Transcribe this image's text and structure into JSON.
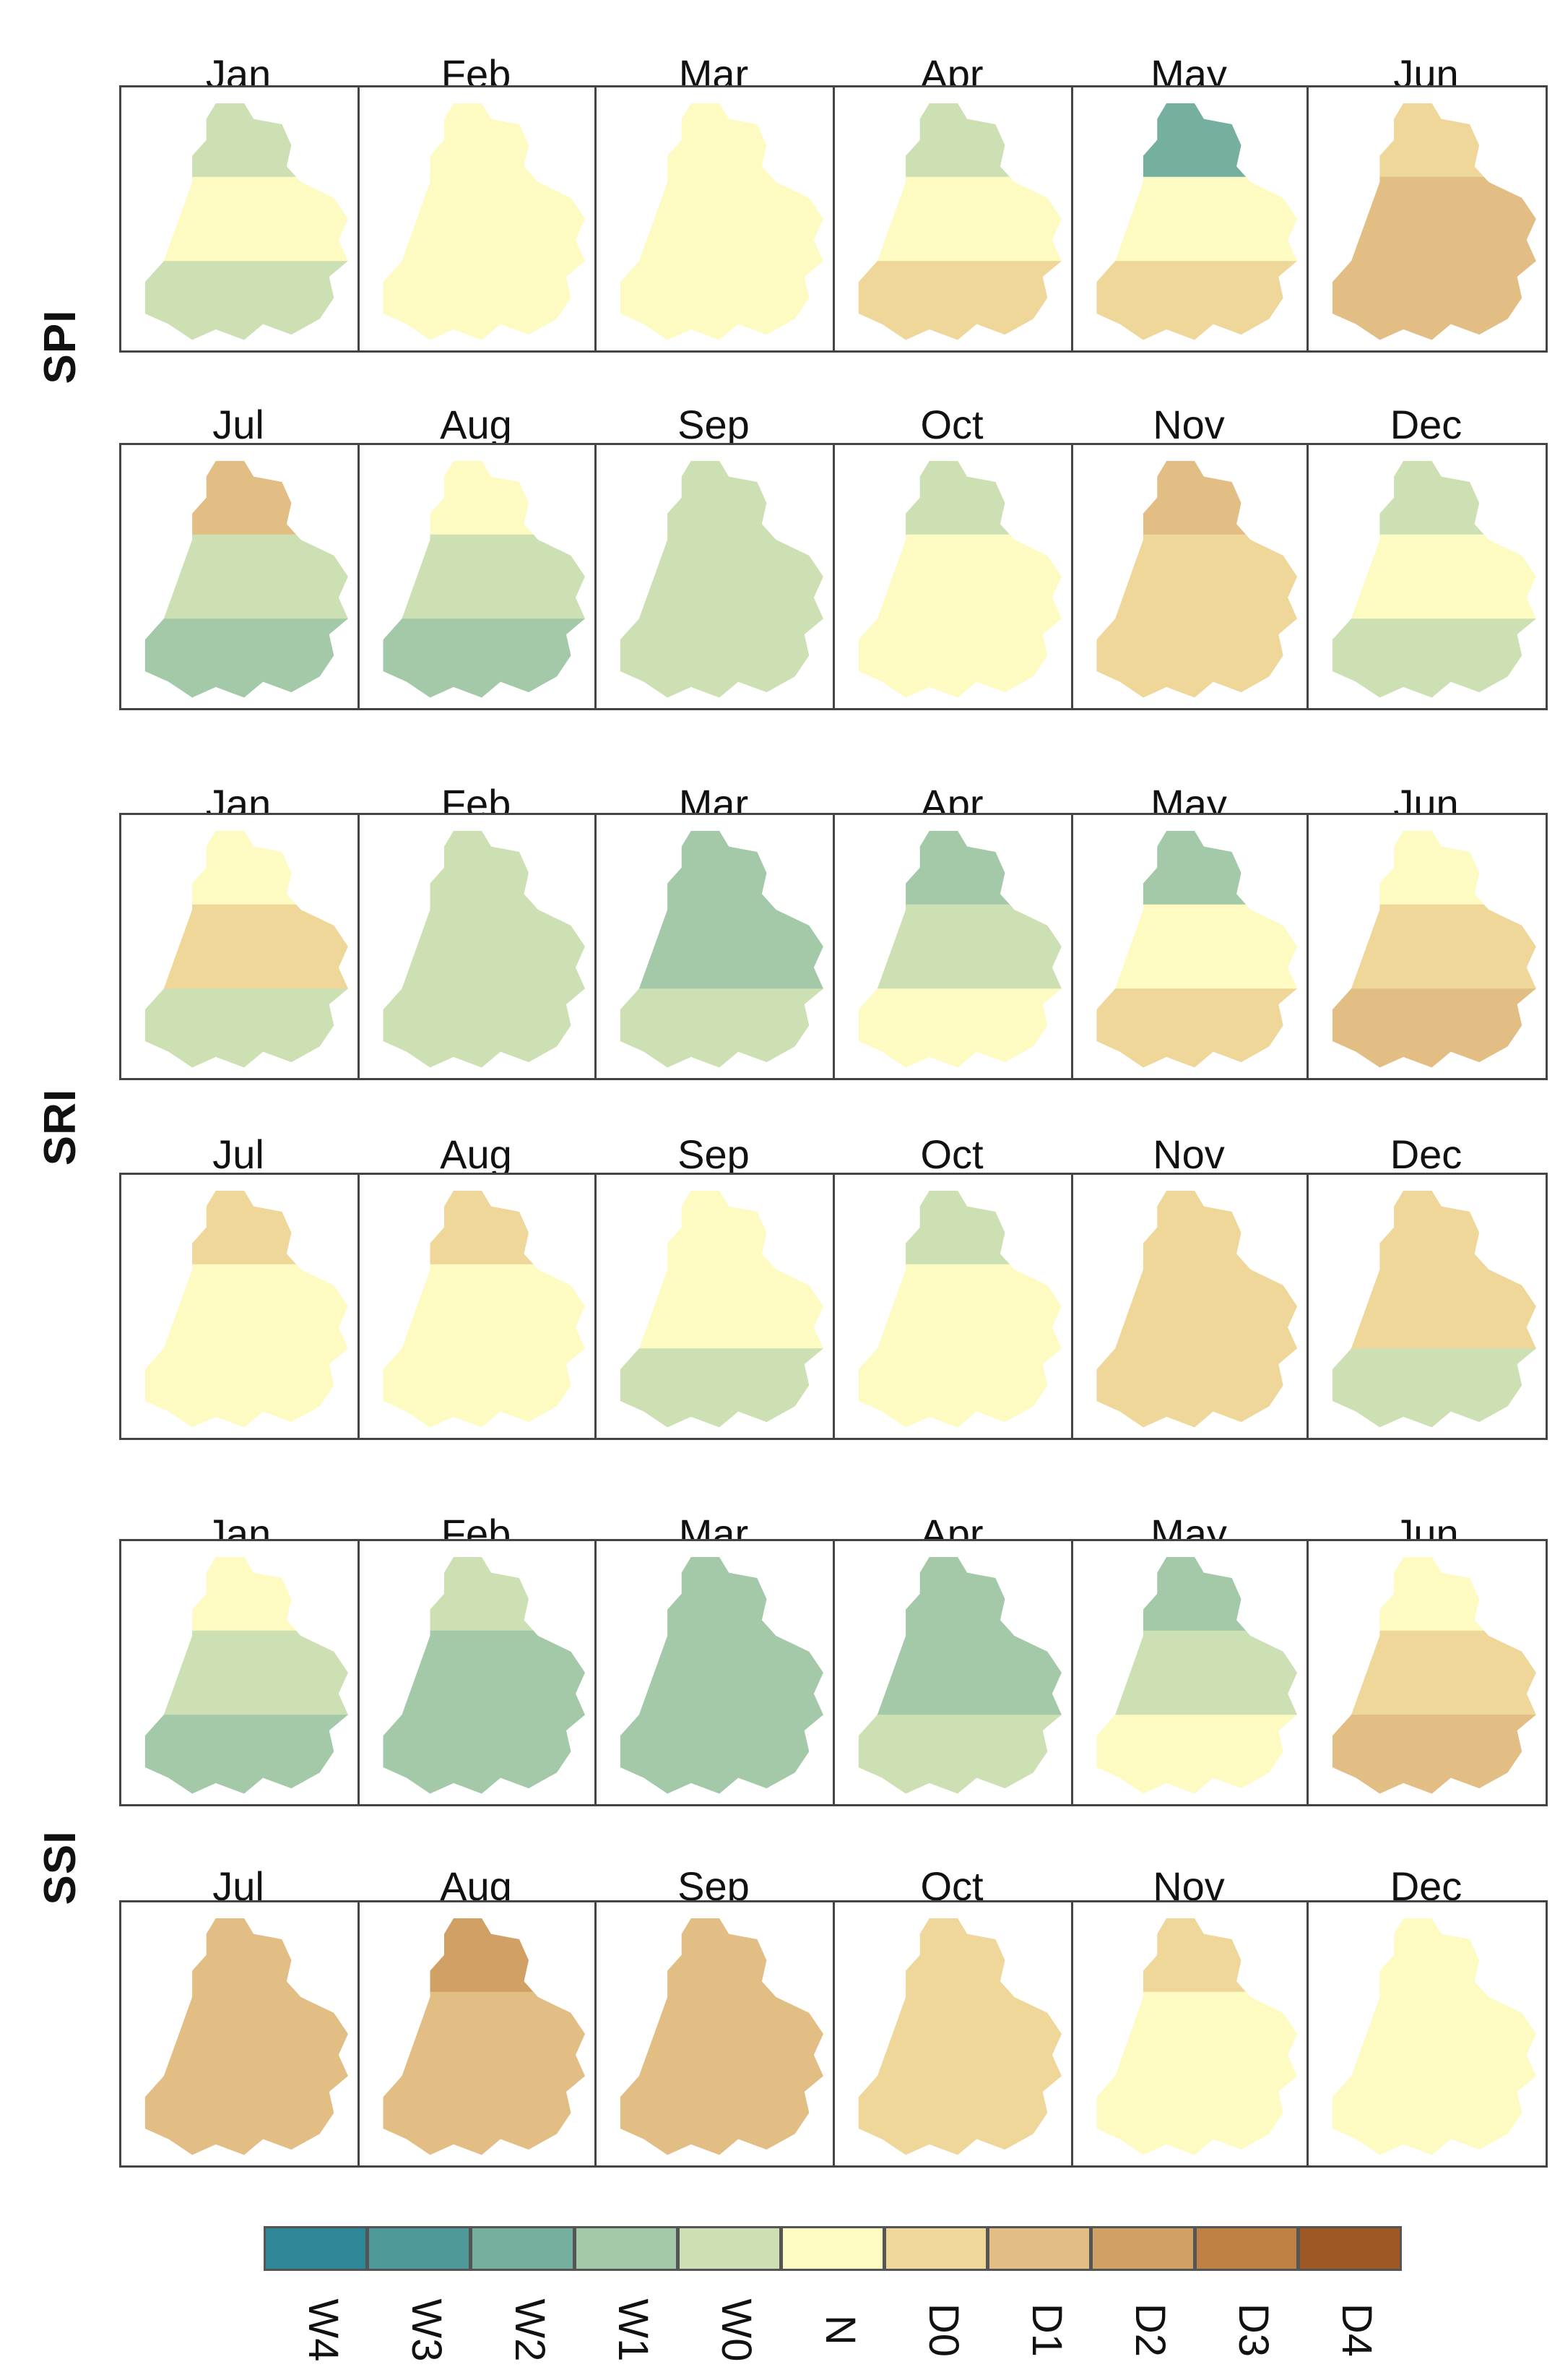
{
  "chart_data": {
    "type": "heatmap",
    "title": "",
    "months": [
      "Jan",
      "Feb",
      "Mar",
      "Apr",
      "May",
      "Jun",
      "Jul",
      "Aug",
      "Sep",
      "Oct",
      "Nov",
      "Dec"
    ],
    "indices": [
      "SPI",
      "SRI",
      "SSI"
    ],
    "legend": {
      "placement": "bottom",
      "categories": [
        "W4",
        "W3",
        "W2",
        "W1",
        "W0",
        "N",
        "D0",
        "D1",
        "D2",
        "D3",
        "D4"
      ],
      "colors": [
        "#2e8797",
        "#4f999b",
        "#74af9f",
        "#a3c9a8",
        "#cde0b3",
        "#fdfbc2",
        "#efd699",
        "#e2bd84",
        "#d1a064",
        "#bf8043",
        "#9e5826"
      ]
    },
    "panels": {
      "SPI": [
        {
          "month": "Jan",
          "levels": {
            "north": "W0",
            "mid": "N",
            "south": "W0"
          }
        },
        {
          "month": "Feb",
          "levels": {
            "north": "N",
            "mid": "N",
            "south": "N"
          }
        },
        {
          "month": "Mar",
          "levels": {
            "north": "N",
            "mid": "N",
            "south": "N"
          }
        },
        {
          "month": "Apr",
          "levels": {
            "north": "W0",
            "mid": "N",
            "south": "D0"
          }
        },
        {
          "month": "May",
          "levels": {
            "north": "W2",
            "mid": "N",
            "south": "D0"
          }
        },
        {
          "month": "Jun",
          "levels": {
            "north": "D0",
            "mid": "D1",
            "south": "D1"
          }
        },
        {
          "month": "Jul",
          "levels": {
            "north": "D1",
            "mid": "W0",
            "south": "W1"
          }
        },
        {
          "month": "Aug",
          "levels": {
            "north": "N",
            "mid": "W0",
            "south": "W1"
          }
        },
        {
          "month": "Sep",
          "levels": {
            "north": "W0",
            "mid": "W0",
            "south": "W0"
          }
        },
        {
          "month": "Oct",
          "levels": {
            "north": "W0",
            "mid": "N",
            "south": "N"
          }
        },
        {
          "month": "Nov",
          "levels": {
            "north": "D1",
            "mid": "D0",
            "south": "D0"
          }
        },
        {
          "month": "Dec",
          "levels": {
            "north": "W0",
            "mid": "N",
            "south": "W0"
          }
        }
      ],
      "SRI": [
        {
          "month": "Jan",
          "levels": {
            "north": "N",
            "mid": "D0",
            "south": "W0"
          }
        },
        {
          "month": "Feb",
          "levels": {
            "north": "W0",
            "mid": "W0",
            "south": "W0"
          }
        },
        {
          "month": "Mar",
          "levels": {
            "north": "W1",
            "mid": "W1",
            "south": "W0"
          }
        },
        {
          "month": "Apr",
          "levels": {
            "north": "W1",
            "mid": "W0",
            "south": "N"
          }
        },
        {
          "month": "May",
          "levels": {
            "north": "W1",
            "mid": "N",
            "south": "D0"
          }
        },
        {
          "month": "Jun",
          "levels": {
            "north": "N",
            "mid": "D0",
            "south": "D1"
          }
        },
        {
          "month": "Jul",
          "levels": {
            "north": "D0",
            "mid": "N",
            "south": "N"
          }
        },
        {
          "month": "Aug",
          "levels": {
            "north": "D0",
            "mid": "N",
            "south": "N"
          }
        },
        {
          "month": "Sep",
          "levels": {
            "north": "N",
            "mid": "N",
            "south": "W0"
          }
        },
        {
          "month": "Oct",
          "levels": {
            "north": "W0",
            "mid": "N",
            "south": "N"
          }
        },
        {
          "month": "Nov",
          "levels": {
            "north": "D0",
            "mid": "D0",
            "south": "D0"
          }
        },
        {
          "month": "Dec",
          "levels": {
            "north": "D0",
            "mid": "D0",
            "south": "W0"
          }
        }
      ],
      "SSI": [
        {
          "month": "Jan",
          "levels": {
            "north": "N",
            "mid": "W0",
            "south": "W1"
          }
        },
        {
          "month": "Feb",
          "levels": {
            "north": "W0",
            "mid": "W1",
            "south": "W1"
          }
        },
        {
          "month": "Mar",
          "levels": {
            "north": "W1",
            "mid": "W1",
            "south": "W1"
          }
        },
        {
          "month": "Apr",
          "levels": {
            "north": "W1",
            "mid": "W1",
            "south": "W0"
          }
        },
        {
          "month": "May",
          "levels": {
            "north": "W1",
            "mid": "W0",
            "south": "N"
          }
        },
        {
          "month": "Jun",
          "levels": {
            "north": "N",
            "mid": "D0",
            "south": "D1"
          }
        },
        {
          "month": "Jul",
          "levels": {
            "north": "D1",
            "mid": "D1",
            "south": "D1"
          }
        },
        {
          "month": "Aug",
          "levels": {
            "north": "D2",
            "mid": "D1",
            "south": "D1"
          }
        },
        {
          "month": "Sep",
          "levels": {
            "north": "D1",
            "mid": "D1",
            "south": "D1"
          }
        },
        {
          "month": "Oct",
          "levels": {
            "north": "D0",
            "mid": "D0",
            "south": "D0"
          }
        },
        {
          "month": "Nov",
          "levels": {
            "north": "D0",
            "mid": "N",
            "south": "N"
          }
        },
        {
          "month": "Dec",
          "levels": {
            "north": "N",
            "mid": "N",
            "south": "N"
          }
        }
      ]
    }
  }
}
